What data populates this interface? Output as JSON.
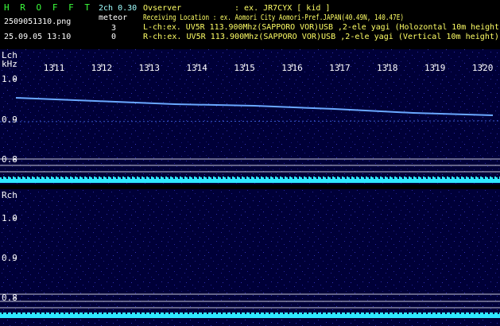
{
  "header": {
    "app": "H R O F F T",
    "mode": "2ch 0.30",
    "file": "2509051310.png",
    "datetime": "25.09.05 13:10",
    "meteor_label": "meteor",
    "lch_count": "3",
    "rch_count": "0",
    "observer_label": "Ovserver",
    "observer": ": ex. JR7CYX [ kid ]",
    "location": "Receiving Location : ex. Aomori City Aomori-Pref.JAPAN(40.49N, 140.47E)",
    "lch_info": "L-ch:ex. UV5R 113.900Mhz(SAPPORO VOR)USB ,2-ele yagi (Holozontal 10m height",
    "rch_info": "R-ch:ex. UV5R 113.900Mhz(SAPPORO VOR)USB ,2-ele yagi (Vertical 10m height)"
  },
  "panels": [
    {
      "label": "Lch",
      "unit": "kHz",
      "time_ticks": [
        "1311",
        "1312",
        "1313",
        "1314",
        "1315",
        "1316",
        "1317",
        "1318",
        "1319",
        "1320"
      ],
      "freq_ticks": [
        "1.0",
        "0.9",
        "0.8"
      ]
    },
    {
      "label": "Rch",
      "freq_ticks": [
        "1.0",
        "0.9",
        "0.8"
      ]
    }
  ]
}
